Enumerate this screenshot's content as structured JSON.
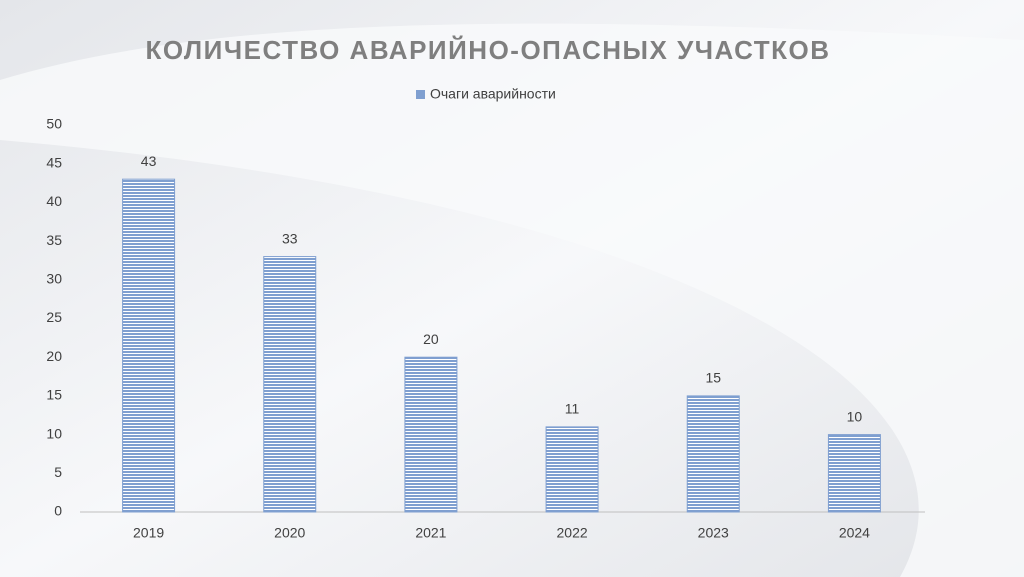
{
  "chart_data": {
    "type": "bar",
    "title": "КОЛИЧЕСТВО АВАРИЙНО-ОПАСНЫХ УЧАСТКОВ",
    "categories": [
      "2019",
      "2020",
      "2021",
      "2022",
      "2023",
      "2024"
    ],
    "series": [
      {
        "name": "Очаги аварийности",
        "color": "#7f9fd0",
        "values": [
          43,
          33,
          20,
          11,
          15,
          10
        ]
      }
    ],
    "ylim": [
      0,
      50
    ],
    "yticks": [
      0,
      5,
      10,
      15,
      20,
      25,
      30,
      35,
      40,
      45,
      50
    ],
    "grid": false,
    "legend": "top"
  }
}
